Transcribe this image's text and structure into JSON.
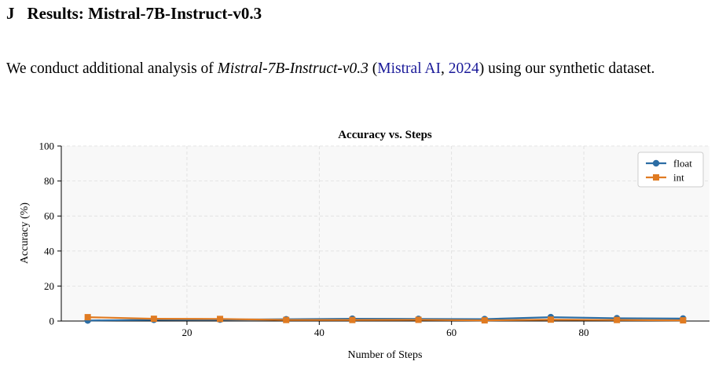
{
  "section": {
    "number": "J",
    "title": "Results: Mistral-7B-Instruct-v0.3"
  },
  "paragraph": {
    "prefix": "We conduct additional analysis of ",
    "model": "Mistral-7B-Instruct-v0.3",
    "open_paren": " (",
    "cite_author": "Mistral AI",
    "comma": ", ",
    "cite_year": "2024",
    "suffix": ") using our synthetic dataset."
  },
  "colors": {
    "float": "#2c6da4",
    "int": "#e07b22",
    "plot_bg": "#f8f8f8",
    "grid": "#dddddd",
    "citation": "#1a1a99"
  },
  "chart_data": {
    "type": "line",
    "title": "Accuracy vs. Steps",
    "xlabel": "Number of Steps",
    "ylabel": "Accuracy (%)",
    "xlim": [
      1,
      99
    ],
    "ylim": [
      0,
      100
    ],
    "xticks": [
      20,
      40,
      60,
      80
    ],
    "yticks": [
      0,
      20,
      40,
      60,
      80,
      100
    ],
    "grid": true,
    "legend_position": "top-right",
    "x": [
      5,
      15,
      25,
      35,
      45,
      55,
      65,
      75,
      85,
      95
    ],
    "series": [
      {
        "name": "float",
        "marker": "circle",
        "color": "#2c6da4",
        "values": [
          0.3,
          0.7,
          0.8,
          1.0,
          1.3,
          1.2,
          1.1,
          2.2,
          1.6,
          1.4
        ]
      },
      {
        "name": "int",
        "marker": "square",
        "color": "#e07b22",
        "values": [
          2.2,
          1.3,
          1.2,
          0.6,
          0.6,
          0.7,
          0.4,
          0.8,
          0.6,
          0.4
        ]
      }
    ]
  }
}
